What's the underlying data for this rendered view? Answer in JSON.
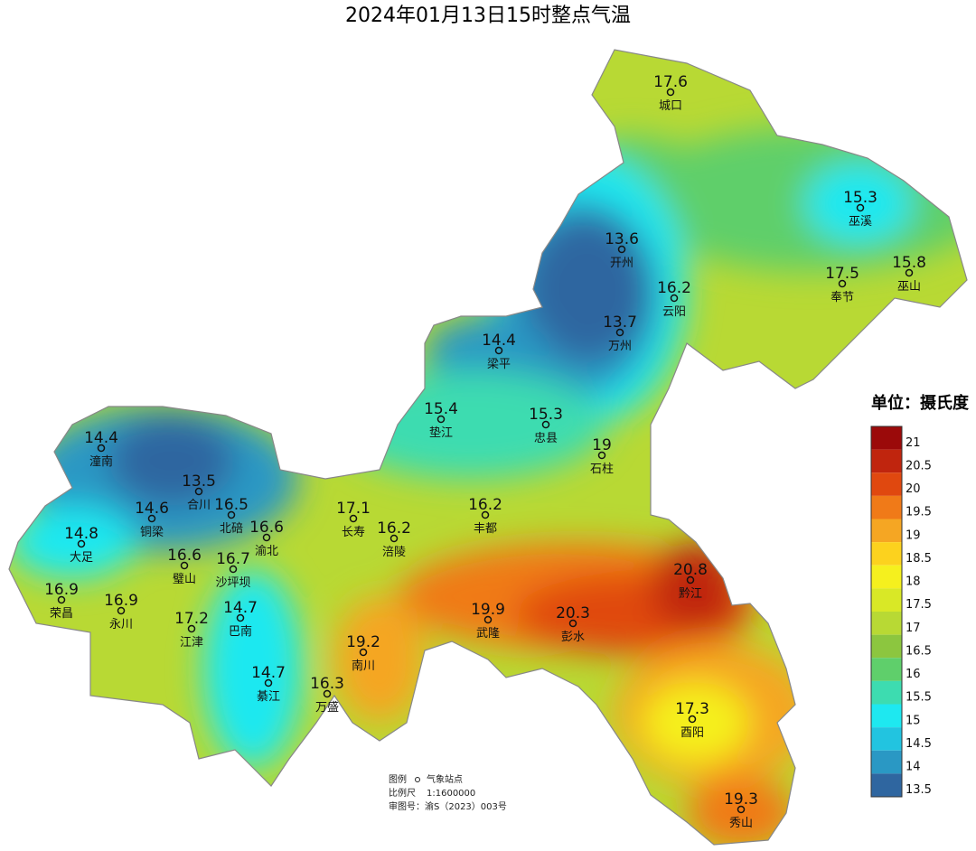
{
  "title": "2024年01月13日15时整点气温",
  "stations": [
    {
      "name": "城口",
      "value": 17.6
    },
    {
      "name": "巫溪",
      "value": 15.3
    },
    {
      "name": "巫山",
      "value": 15.8
    },
    {
      "name": "奉节",
      "value": 17.5
    },
    {
      "name": "云阳",
      "value": 16.2
    },
    {
      "name": "开州",
      "value": 13.6
    },
    {
      "name": "万州",
      "value": 13.7
    },
    {
      "name": "梁平",
      "value": 14.4
    },
    {
      "name": "垫江",
      "value": 15.4
    },
    {
      "name": "忠县",
      "value": 15.3
    },
    {
      "name": "石柱",
      "value": 19
    },
    {
      "name": "潼南",
      "value": 14.4
    },
    {
      "name": "合川",
      "value": 13.5
    },
    {
      "name": "铜梁",
      "value": 14.6
    },
    {
      "name": "北碚",
      "value": 16.5
    },
    {
      "name": "渝北",
      "value": 16.6
    },
    {
      "name": "大足",
      "value": 14.8
    },
    {
      "name": "长寿",
      "value": 17.1
    },
    {
      "name": "涪陵",
      "value": 16.2
    },
    {
      "name": "丰都",
      "value": 16.2
    },
    {
      "name": "璧山",
      "value": 16.6
    },
    {
      "name": "沙坪坝",
      "value": 16.7
    },
    {
      "name": "荣昌",
      "value": 16.9
    },
    {
      "name": "永川",
      "value": 16.9
    },
    {
      "name": "江津",
      "value": 17.2
    },
    {
      "name": "巴南",
      "value": 14.7
    },
    {
      "name": "綦江",
      "value": 14.7
    },
    {
      "name": "南川",
      "value": 19.2
    },
    {
      "name": "万盛",
      "value": 16.3
    },
    {
      "name": "武隆",
      "value": 19.9
    },
    {
      "name": "彭水",
      "value": 20.3
    },
    {
      "name": "黔江",
      "value": 20.8
    },
    {
      "name": "酉阳",
      "value": 17.3
    },
    {
      "name": "秀山",
      "value": 19.3
    }
  ],
  "legend": {
    "title": "单位：摄氏度",
    "ticks": [
      21,
      20.5,
      20,
      19.5,
      19,
      18.5,
      18,
      17.5,
      17,
      16.5,
      16,
      15.5,
      15,
      14.5,
      14,
      13.5
    ],
    "colors": [
      "#9b0a0a",
      "#c0250e",
      "#e0480f",
      "#f07a18",
      "#f5a623",
      "#fcd21e",
      "#f5f01e",
      "#d9e826",
      "#b8d934",
      "#8cc63f",
      "#5fcf6b",
      "#3ddcb0",
      "#1ee8f0",
      "#22c4e0",
      "#2a98c4",
      "#2f66a0"
    ]
  },
  "notes": {
    "legend_label": "图例",
    "station_label": "气象站点",
    "scale_label": "比例尺",
    "scale": "1:1600000",
    "approval": "审图号：渝S（2023）003号"
  }
}
